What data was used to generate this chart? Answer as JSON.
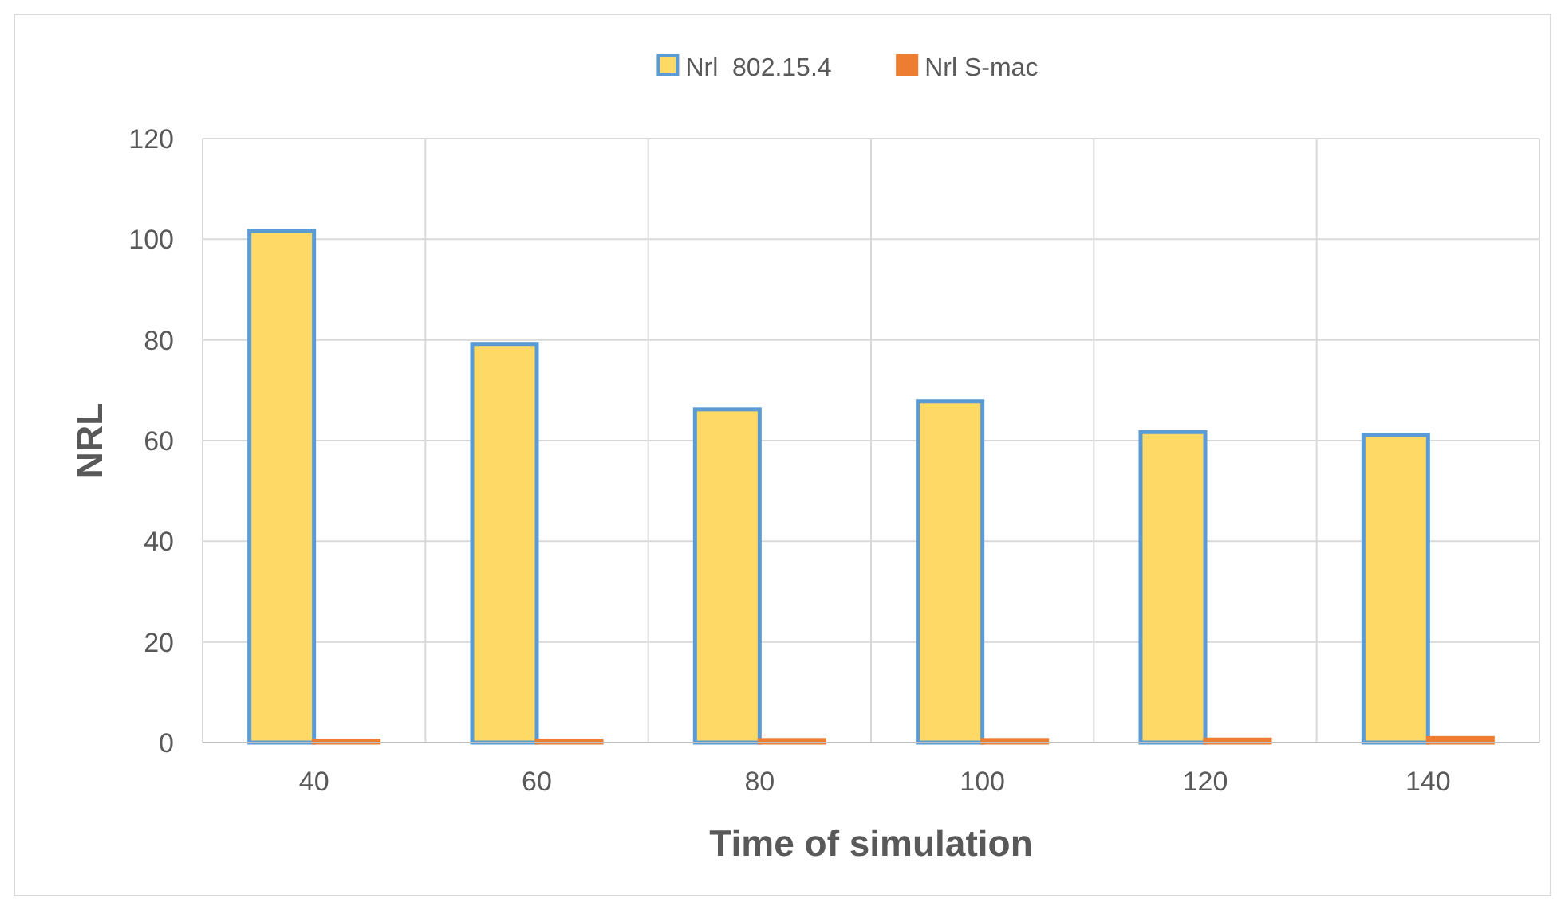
{
  "chart_data": {
    "type": "bar",
    "xlabel": "Time of simulation",
    "ylabel": "NRL",
    "categories": [
      "40",
      "60",
      "80",
      "100",
      "120",
      "140"
    ],
    "series": [
      {
        "name": "Nrl  802.15.4",
        "color": "#ffd966",
        "values": [
          101.6,
          79.2,
          66.2,
          67.8,
          61.7,
          61.1
        ]
      },
      {
        "name": "Nrl S-mac",
        "color": "#ed7d31",
        "values": [
          0.4,
          0.4,
          0.5,
          0.5,
          0.6,
          0.9
        ]
      }
    ],
    "ylim": [
      0,
      120
    ],
    "yticks": [
      0,
      20,
      40,
      60,
      80,
      100,
      120
    ],
    "grid": true,
    "legend": "top"
  }
}
